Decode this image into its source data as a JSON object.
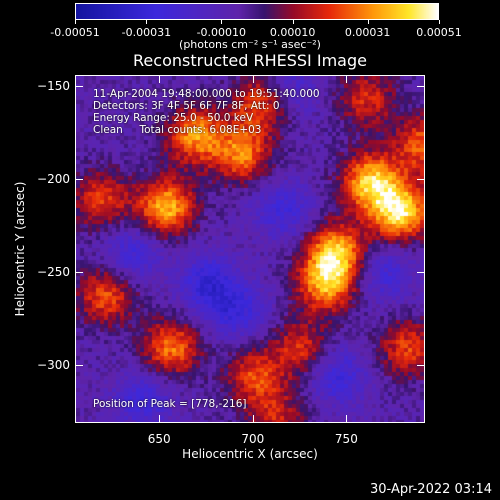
{
  "chart_data": {
    "type": "heatmap",
    "title": "Reconstructed RHESSI Image",
    "xlabel": "Heliocentric X (arcsec)",
    "ylabel": "Heliocentric Y (arcsec)",
    "xlim": [
      605,
      792
    ],
    "ylim": [
      -331,
      -144
    ],
    "x_ticks": [
      "650",
      "700",
      "750"
    ],
    "y_ticks": [
      "-150",
      "-200",
      "-250",
      "-300"
    ],
    "colorbar": {
      "ticks": [
        "-0.00051",
        "-0.00031",
        "-0.00010",
        "0.00010",
        "0.00031",
        "0.00051"
      ],
      "unit": "(photons cm⁻² s⁻¹ asec⁻²)",
      "range": [
        -0.00051,
        0.00051
      ],
      "colormap": "blue-purple-red-yellow-white"
    },
    "annotations": {
      "time": "11-Apr-2004 19:48:00.000 to 19:51:40.000",
      "detectors": "Detectors: 3F 4F 5F 6F 7F 8F, Att: 0",
      "energy": "Energy Range: 25.0 - 50.0 keV",
      "clean": "Clean     Total counts: 6.08E+03",
      "peak": "Position of Peak = [778,-216]"
    },
    "peak_position": [
      778,
      -216
    ],
    "bright_regions": [
      {
        "x": 778,
        "y": -216,
        "value": 0.00051
      },
      {
        "x": 762,
        "y": -200,
        "value": 0.00045
      },
      {
        "x": 744,
        "y": -238,
        "value": 0.00042
      },
      {
        "x": 738,
        "y": -255,
        "value": 0.0004
      },
      {
        "x": 652,
        "y": -214,
        "value": 0.00044
      },
      {
        "x": 668,
        "y": -175,
        "value": 0.00038
      },
      {
        "x": 693,
        "y": -185,
        "value": 0.00035
      },
      {
        "x": 703,
        "y": -158,
        "value": 0.0003
      },
      {
        "x": 655,
        "y": -290,
        "value": 0.00035
      },
      {
        "x": 620,
        "y": -262,
        "value": 0.0003
      },
      {
        "x": 617,
        "y": -210,
        "value": 0.00028
      },
      {
        "x": 700,
        "y": -305,
        "value": 0.00028
      },
      {
        "x": 725,
        "y": -290,
        "value": 0.00025
      },
      {
        "x": 782,
        "y": -290,
        "value": 0.00028
      },
      {
        "x": 790,
        "y": -180,
        "value": 0.00032
      },
      {
        "x": 760,
        "y": -155,
        "value": 0.00025
      },
      {
        "x": 712,
        "y": -328,
        "value": 0.00022
      }
    ],
    "dim_regions": [
      {
        "x": 675,
        "y": -255,
        "value": -0.00025
      },
      {
        "x": 635,
        "y": -238,
        "value": -0.0002
      },
      {
        "x": 690,
        "y": -270,
        "value": -0.00022
      },
      {
        "x": 715,
        "y": -215,
        "value": -0.0002
      },
      {
        "x": 745,
        "y": -305,
        "value": -0.00022
      },
      {
        "x": 770,
        "y": -250,
        "value": -0.00018
      },
      {
        "x": 640,
        "y": -318,
        "value": -0.0002
      },
      {
        "x": 720,
        "y": -150,
        "value": -0.00015
      }
    ]
  },
  "timestamp": "30-Apr-2022 03:14"
}
